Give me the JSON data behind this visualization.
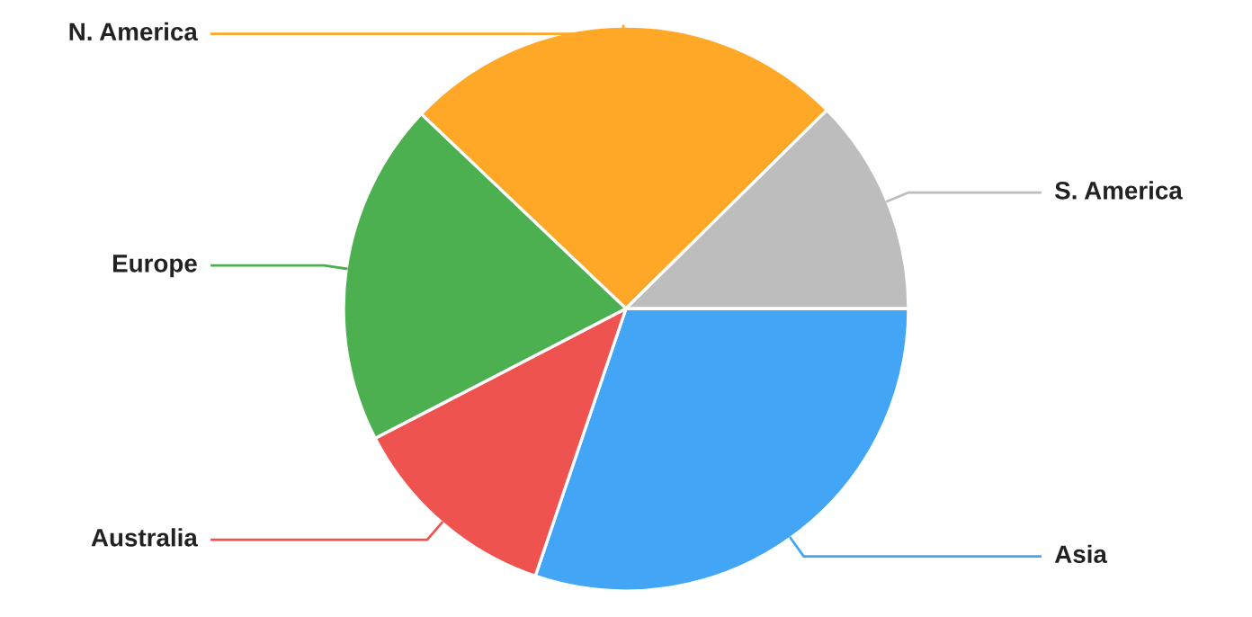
{
  "chart_data": {
    "type": "pie",
    "categories": [
      "Asia",
      "Australia",
      "Europe",
      "N. America",
      "S. America"
    ],
    "values": [
      30.2,
      12.2,
      19.7,
      25.5,
      12.4
    ],
    "colors": [
      "#42a5f5",
      "#ef5350",
      "#4caf50",
      "#ffa726",
      "#bdbdbd"
    ],
    "legend": false
  }
}
